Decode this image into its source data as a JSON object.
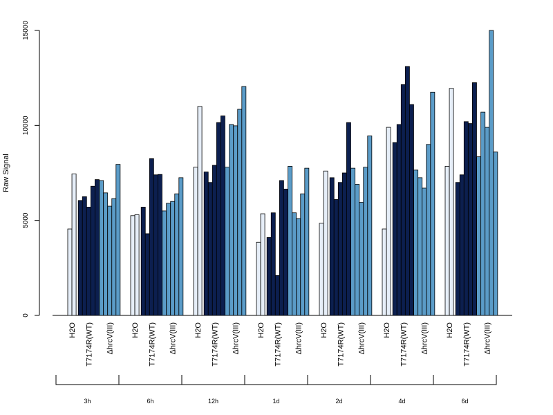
{
  "chart_data": {
    "type": "bar",
    "ylabel": "Raw Signal",
    "ylim": [
      0,
      15000
    ],
    "yticks": [
      0,
      5000,
      10000,
      15000
    ],
    "time_points": [
      "3h",
      "6h",
      "12h",
      "1d",
      "2d",
      "4d",
      "6d"
    ],
    "condition_labels": [
      "H2O",
      "T7174R(WT)",
      "ΔhrcV(III)"
    ],
    "condition_colors": [
      "#e6eef8",
      "#0c1f4f",
      "#5b9cc8"
    ],
    "series": [
      {
        "name": "3h",
        "values": [
          [
            4550,
            7450
          ],
          [
            6050,
            6250,
            5700,
            6800,
            7150
          ],
          [
            7100,
            6450,
            5750,
            6150,
            7950
          ]
        ]
      },
      {
        "name": "6h",
        "values": [
          [
            5250,
            5300
          ],
          [
            5700,
            4300,
            8250,
            7400,
            7420
          ],
          [
            5500,
            5900,
            6000,
            6400,
            7250
          ]
        ]
      },
      {
        "name": "12h",
        "values": [
          [
            7800,
            11000
          ],
          [
            7550,
            7000,
            7900,
            10150,
            10500
          ],
          [
            7800,
            10050,
            9980,
            10850,
            12050
          ]
        ]
      },
      {
        "name": "1d",
        "values": [
          [
            3850,
            5350
          ],
          [
            4100,
            5400,
            2100,
            7100,
            6650
          ],
          [
            7850,
            5400,
            5100,
            6400,
            7750
          ]
        ]
      },
      {
        "name": "2d",
        "values": [
          [
            4850,
            7600
          ],
          [
            7250,
            6100,
            7000,
            7500,
            10150
          ],
          [
            7750,
            6900,
            5950,
            7800,
            9450
          ]
        ]
      },
      {
        "name": "4d",
        "values": [
          [
            4550,
            9900
          ],
          [
            9100,
            10050,
            12150,
            13100,
            11100
          ],
          [
            7650,
            7250,
            6700,
            9000,
            11750
          ]
        ]
      },
      {
        "name": "6d",
        "values": [
          [
            7850,
            11950
          ],
          [
            7000,
            7400,
            10200,
            10100,
            12250
          ],
          [
            8350,
            10700,
            9900,
            15000,
            8600
          ]
        ]
      }
    ]
  }
}
